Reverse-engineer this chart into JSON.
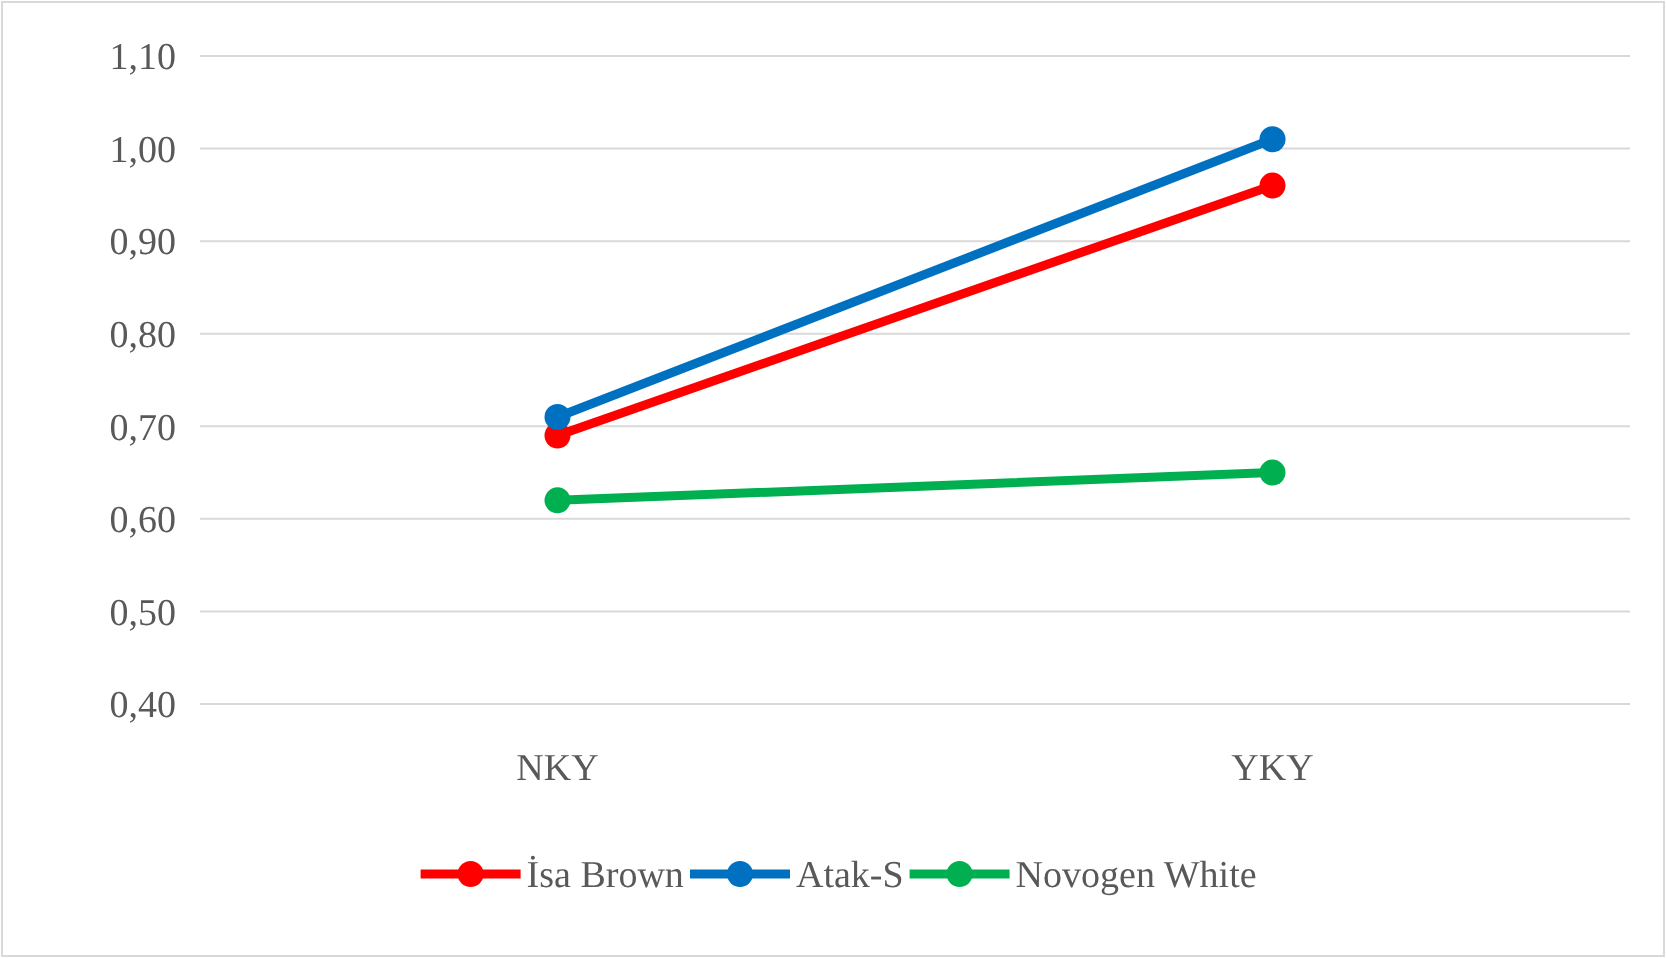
{
  "chart_data": {
    "type": "line",
    "categories": [
      "NKY",
      "YKY"
    ],
    "series": [
      {
        "name": "İsa Brown",
        "color": "#ff0000",
        "values": [
          0.69,
          0.96
        ]
      },
      {
        "name": "Atak-S",
        "color": "#0070c0",
        "values": [
          0.71,
          1.01
        ]
      },
      {
        "name": "Novogen White",
        "color": "#00b050",
        "values": [
          0.62,
          0.65
        ]
      }
    ],
    "ylim": [
      0.4,
      1.1
    ],
    "yticks": [
      {
        "value": 0.4,
        "label": "0,40"
      },
      {
        "value": 0.5,
        "label": "0,50"
      },
      {
        "value": 0.6,
        "label": "0,60"
      },
      {
        "value": 0.7,
        "label": "0,70"
      },
      {
        "value": 0.8,
        "label": "0,80"
      },
      {
        "value": 0.9,
        "label": "0,90"
      },
      {
        "value": 1.0,
        "label": "1,00"
      },
      {
        "value": 1.1,
        "label": "1,10"
      }
    ],
    "grid": "y",
    "legend": "bottom",
    "marker": "circle",
    "line_style": "solid"
  }
}
